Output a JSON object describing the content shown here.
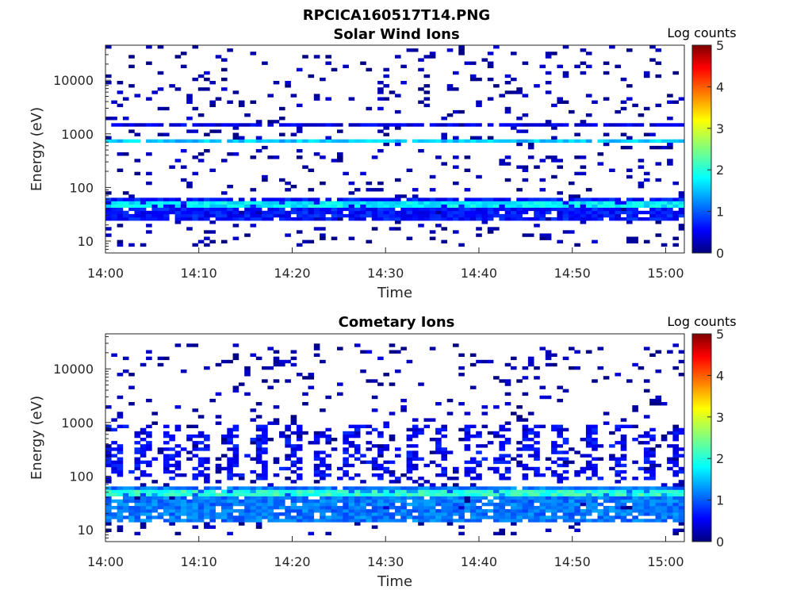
{
  "figure": {
    "title": "RPCICA160517T14.PNG"
  },
  "chart_data": [
    {
      "type": "heatmap",
      "title": "Solar Wind Ions",
      "xlabel": "Time",
      "ylabel": "Energy (eV)",
      "xscale": "time",
      "yscale": "log",
      "xlim": [
        "14:00",
        "15:02"
      ],
      "ylim": [
        6,
        45000
      ],
      "xticks": [
        "14:00",
        "14:10",
        "14:20",
        "14:30",
        "14:40",
        "14:50",
        "15:00"
      ],
      "yticks": [
        "10",
        "100",
        "1000",
        "10000"
      ],
      "colorbar": {
        "label": "Log counts",
        "range": [
          0,
          5
        ],
        "ticks": [
          "0",
          "1",
          "2",
          "3",
          "4",
          "5"
        ],
        "colormap": "jet"
      },
      "colormap": [
        "#00007f",
        "#0000ff",
        "#007fff",
        "#00ffff",
        "#7fff7f",
        "#ffff00",
        "#ff7f00",
        "#ff0000",
        "#7f0000"
      ],
      "features": [
        {
          "t0": 0,
          "t1": 62,
          "e0": 24,
          "e1": 60,
          "level": 0.7,
          "desc": "dense low-energy solar wind band"
        },
        {
          "t0": 0,
          "t1": 62,
          "e0": 40,
          "e1": 56,
          "level": 1.8,
          "desc": "peak solar wind beam"
        },
        {
          "t0": 0,
          "t1": 62,
          "e0": 650,
          "e1": 800,
          "level": 1.6,
          "desc": "alpha / high energy beam"
        },
        {
          "t0": 0,
          "t1": 62,
          "e0": 1450,
          "e1": 1650,
          "level": 0.5,
          "desc": "persistent line"
        },
        {
          "t0": 0,
          "t1": 62,
          "e0": 8,
          "e1": 45000,
          "level": 0.2,
          "desc": "sporadic background counts"
        }
      ]
    },
    {
      "type": "heatmap",
      "title": "Cometary Ions",
      "xlabel": "Time",
      "ylabel": "Energy (eV)",
      "xscale": "time",
      "yscale": "log",
      "xlim": [
        "14:00",
        "15:02"
      ],
      "ylim": [
        6,
        45000
      ],
      "xticks": [
        "14:00",
        "14:10",
        "14:20",
        "14:30",
        "14:40",
        "14:50",
        "15:00"
      ],
      "yticks": [
        "10",
        "100",
        "1000",
        "10000"
      ],
      "colorbar": {
        "label": "Log counts",
        "range": [
          0,
          5
        ],
        "ticks": [
          "0",
          "1",
          "2",
          "3",
          "4",
          "5"
        ],
        "colormap": "jet"
      },
      "colormap": [
        "#00007f",
        "#0000ff",
        "#007fff",
        "#00ffff",
        "#7fff7f",
        "#ffff00",
        "#ff7f00",
        "#ff0000",
        "#7f0000"
      ],
      "features": [
        {
          "t0": 0,
          "t1": 62,
          "e0": 14,
          "e1": 65,
          "level": 1.2,
          "desc": "dense low-energy cometary ion band"
        },
        {
          "t0": 0,
          "t1": 62,
          "e0": 40,
          "e1": 56,
          "level": 2.1,
          "desc": "peak cometary ion flux"
        },
        {
          "t0": 0,
          "t1": 62,
          "e0": 80,
          "e1": 900,
          "level": 0.6,
          "desc": "periodic vertical streaks"
        },
        {
          "t0": 0,
          "t1": 62,
          "e0": 8,
          "e1": 30000,
          "level": 0.2,
          "desc": "sporadic high energy counts"
        }
      ]
    }
  ]
}
